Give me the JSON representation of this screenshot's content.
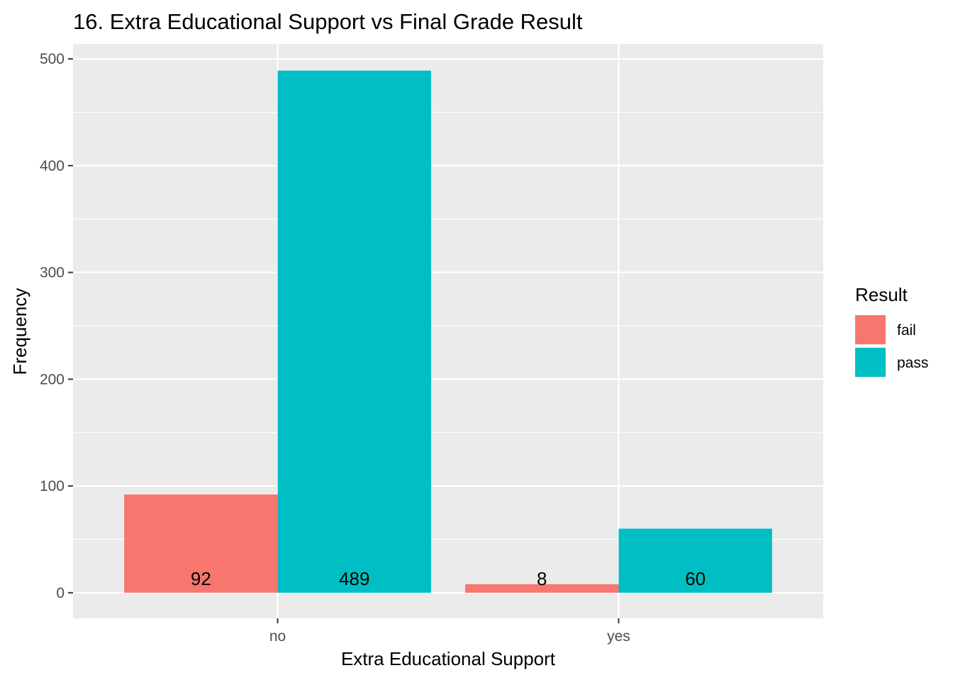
{
  "chart_data": {
    "type": "bar",
    "title": "16. Extra Educational Support vs Final Grade Result",
    "xlabel": "Extra Educational Support",
    "ylabel": "Frequency",
    "categories": [
      "no",
      "yes"
    ],
    "series": [
      {
        "name": "fail",
        "values": [
          92,
          8
        ],
        "color": "#F8766D"
      },
      {
        "name": "pass",
        "values": [
          489,
          60
        ],
        "color": "#00BFC4"
      }
    ],
    "data_labels": [
      [
        "92",
        "8"
      ],
      [
        "489",
        "60"
      ]
    ],
    "ylim": [
      -24,
      514
    ],
    "yticks": [
      0,
      100,
      200,
      300,
      400,
      500
    ],
    "yminor": [
      50,
      150,
      250,
      350,
      450
    ],
    "grid": true,
    "legend": {
      "title": "Result",
      "placement": "right"
    },
    "panel_color": "#EBEBEB",
    "grid_color": "#FFFFFF"
  }
}
